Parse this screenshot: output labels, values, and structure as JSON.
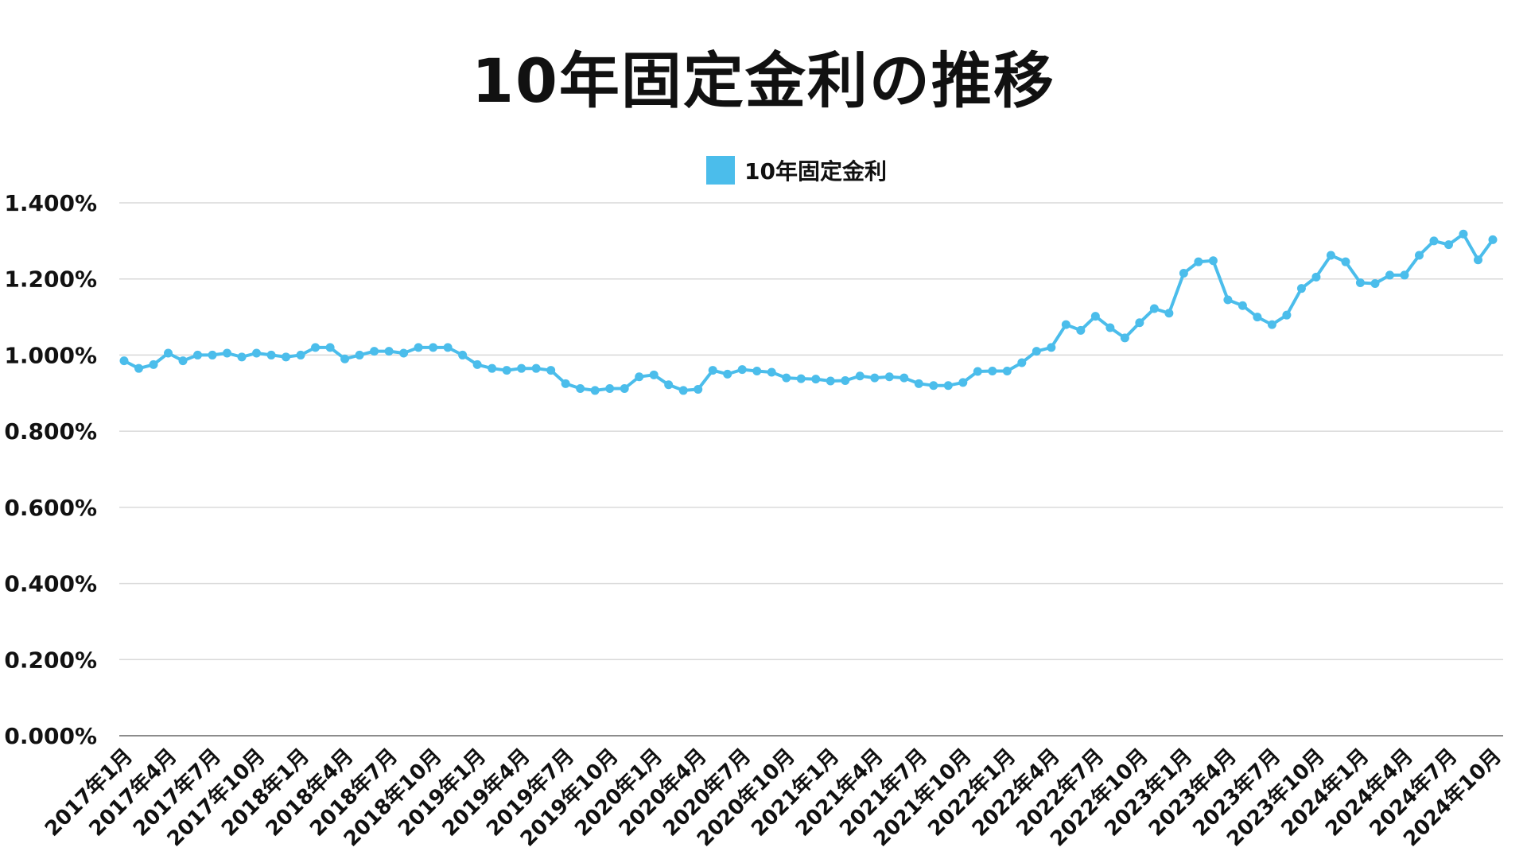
{
  "chart_data": {
    "type": "line",
    "title": "10年固定金利の推移",
    "xlabel": "",
    "ylabel": "",
    "ylim": [
      0,
      1.4
    ],
    "yticks": [
      "0.000%",
      "0.200%",
      "0.400%",
      "0.600%",
      "0.800%",
      "1.000%",
      "1.200%",
      "1.400%"
    ],
    "grid": true,
    "legend_position": "top-center",
    "x_tick_labels": [
      "2017年1月",
      "2017年4月",
      "2017年7月",
      "2017年10月",
      "2018年1月",
      "2018年4月",
      "2018年7月",
      "2018年10月",
      "2019年1月",
      "2019年4月",
      "2019年7月",
      "2019年10月",
      "2020年1月",
      "2020年4月",
      "2020年7月",
      "2020年10月",
      "2021年1月",
      "2021年4月",
      "2021年7月",
      "2021年10月",
      "2022年1月",
      "2022年4月",
      "2022年7月",
      "2022年10月",
      "2023年1月",
      "2023年4月",
      "2023年7月",
      "2023年10月",
      "2024年1月",
      "2024年4月",
      "2024年7月",
      "2024年10月"
    ],
    "series": [
      {
        "name": "10年固定金利",
        "color": "#4BBDEB",
        "values": [
          0.985,
          0.965,
          0.975,
          1.005,
          0.985,
          1.0,
          1.0,
          1.005,
          0.995,
          1.005,
          1.0,
          0.995,
          1.0,
          1.02,
          1.02,
          0.99,
          1.0,
          1.01,
          1.01,
          1.005,
          1.02,
          1.02,
          1.02,
          1.0,
          0.975,
          0.965,
          0.96,
          0.965,
          0.965,
          0.96,
          0.925,
          0.912,
          0.907,
          0.912,
          0.912,
          0.943,
          0.948,
          0.922,
          0.907,
          0.91,
          0.96,
          0.95,
          0.962,
          0.958,
          0.955,
          0.94,
          0.938,
          0.937,
          0.932,
          0.933,
          0.945,
          0.94,
          0.943,
          0.94,
          0.925,
          0.92,
          0.92,
          0.928,
          0.957,
          0.958,
          0.958,
          0.98,
          1.01,
          1.02,
          1.08,
          1.065,
          1.102,
          1.072,
          1.045,
          1.085,
          1.122,
          1.11,
          1.215,
          1.245,
          1.248,
          1.145,
          1.13,
          1.1,
          1.08,
          1.105,
          1.175,
          1.205,
          1.262,
          1.245,
          1.19,
          1.188,
          1.21,
          1.21,
          1.262,
          1.3,
          1.29,
          1.318,
          1.25,
          1.303
        ]
      }
    ]
  }
}
